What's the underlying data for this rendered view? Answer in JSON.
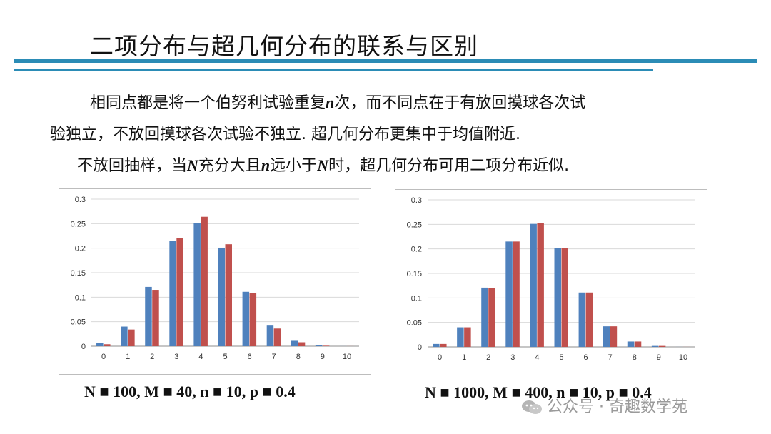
{
  "slide": {
    "title": "二项分布与超几何分布的联系与区别",
    "paragraph_line1_a": "相同点都是将一个伯努利试验重复",
    "paragraph_line1_n": "n",
    "paragraph_line1_b": "次，而不同点在于有放回摸球各次试",
    "paragraph_line2": "验独立，不放回摸球各次试验不独立.   超几何分布更集中于均值附近.",
    "paragraph_line3_a": "不放回抽样，当",
    "paragraph_line3_N1": "N",
    "paragraph_line3_b": "充分大且",
    "paragraph_line3_n": "n",
    "paragraph_line3_c": "远小于",
    "paragraph_line3_N2": "N",
    "paragraph_line3_d": "时，超几何分布可用二项分布近似."
  },
  "captions": {
    "left": "N ■ 100, M ■ 40, n ■ 10, p ■ 0.4",
    "right": "N ■ 1000, M ■ 400, n ■ 10, p ■ 0.4"
  },
  "watermark": {
    "text": "公众号 · 奇趣数学苑"
  },
  "colors": {
    "series_a": "#4f81bd",
    "series_b": "#c0504d",
    "rule": "#2b8cb6",
    "grid": "#d9d9d9"
  },
  "chart_data": [
    {
      "type": "bar",
      "categories": [
        "0",
        "1",
        "2",
        "3",
        "4",
        "5",
        "6",
        "7",
        "8",
        "9",
        "10"
      ],
      "ylim": [
        0,
        0.3
      ],
      "yticks": [
        "0",
        "0.05",
        "0.1",
        "0.15",
        "0.2",
        "0.25",
        "0.3"
      ],
      "grid": true,
      "series": [
        {
          "values": [
            0.006,
            0.04,
            0.121,
            0.215,
            0.251,
            0.201,
            0.111,
            0.042,
            0.011,
            0.002,
            0.0001
          ]
        },
        {
          "values": [
            0.004,
            0.034,
            0.115,
            0.22,
            0.264,
            0.208,
            0.108,
            0.036,
            0.008,
            0.001,
            0.0001
          ]
        }
      ]
    },
    {
      "type": "bar",
      "categories": [
        "0",
        "1",
        "2",
        "3",
        "4",
        "5",
        "6",
        "7",
        "8",
        "9",
        "10"
      ],
      "ylim": [
        0,
        0.3
      ],
      "yticks": [
        "0",
        "0.05",
        "0.1",
        "0.15",
        "0.2",
        "0.25",
        "0.3"
      ],
      "grid": true,
      "series": [
        {
          "values": [
            0.006,
            0.04,
            0.121,
            0.215,
            0.251,
            0.201,
            0.111,
            0.042,
            0.011,
            0.002,
            0.0001
          ]
        },
        {
          "values": [
            0.006,
            0.04,
            0.12,
            0.215,
            0.252,
            0.201,
            0.111,
            0.042,
            0.011,
            0.002,
            0.0001
          ]
        }
      ]
    }
  ]
}
